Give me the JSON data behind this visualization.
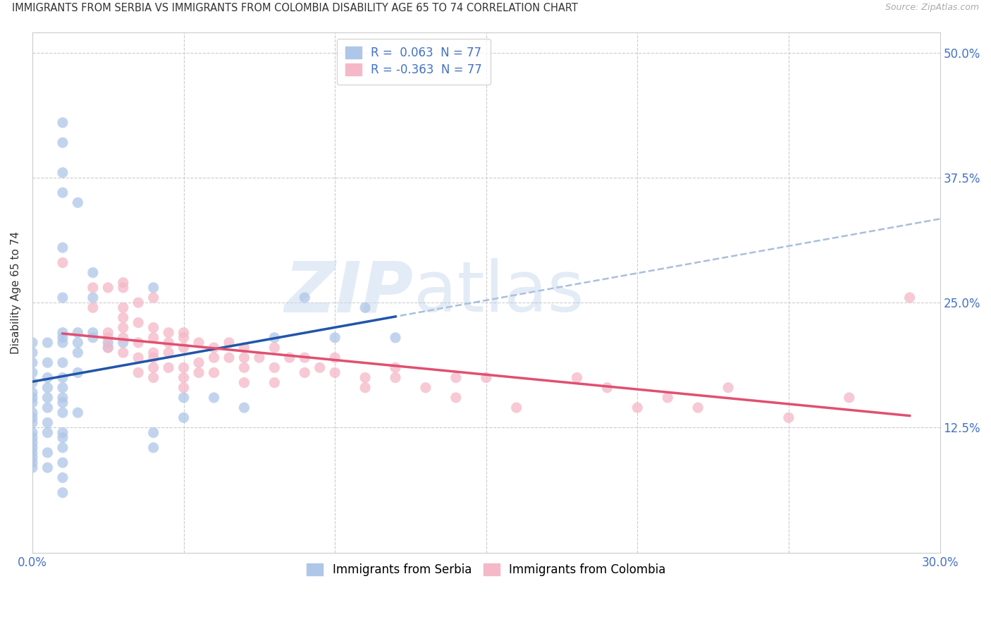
{
  "title": "IMMIGRANTS FROM SERBIA VS IMMIGRANTS FROM COLOMBIA DISABILITY AGE 65 TO 74 CORRELATION CHART",
  "source": "Source: ZipAtlas.com",
  "ylabel": "Disability Age 65 to 74",
  "xlim": [
    0.0,
    0.3
  ],
  "ylim": [
    0.0,
    0.52
  ],
  "xticks": [
    0.0,
    0.05,
    0.1,
    0.15,
    0.2,
    0.25,
    0.3
  ],
  "yticks": [
    0.125,
    0.25,
    0.375,
    0.5
  ],
  "ytick_labels": [
    "12.5%",
    "25.0%",
    "37.5%",
    "50.0%"
  ],
  "serbia_color": "#aec6e8",
  "colombia_color": "#f4b8c8",
  "serbia_line_color": "#2255aa",
  "colombia_line_color": "#e05070",
  "serbia_dash_color": "#a0b8d8",
  "serbia_scatter": [
    [
      0.0,
      0.21
    ],
    [
      0.0,
      0.2
    ],
    [
      0.0,
      0.19
    ],
    [
      0.0,
      0.18
    ],
    [
      0.0,
      0.17
    ],
    [
      0.0,
      0.16
    ],
    [
      0.0,
      0.155
    ],
    [
      0.0,
      0.15
    ],
    [
      0.0,
      0.14
    ],
    [
      0.0,
      0.135
    ],
    [
      0.0,
      0.13
    ],
    [
      0.0,
      0.12
    ],
    [
      0.0,
      0.115
    ],
    [
      0.0,
      0.11
    ],
    [
      0.0,
      0.105
    ],
    [
      0.0,
      0.1
    ],
    [
      0.0,
      0.095
    ],
    [
      0.0,
      0.09
    ],
    [
      0.0,
      0.085
    ],
    [
      0.005,
      0.21
    ],
    [
      0.005,
      0.19
    ],
    [
      0.005,
      0.175
    ],
    [
      0.005,
      0.165
    ],
    [
      0.005,
      0.155
    ],
    [
      0.005,
      0.145
    ],
    [
      0.005,
      0.13
    ],
    [
      0.005,
      0.12
    ],
    [
      0.005,
      0.1
    ],
    [
      0.005,
      0.085
    ],
    [
      0.01,
      0.43
    ],
    [
      0.01,
      0.41
    ],
    [
      0.01,
      0.38
    ],
    [
      0.01,
      0.36
    ],
    [
      0.01,
      0.305
    ],
    [
      0.01,
      0.255
    ],
    [
      0.01,
      0.22
    ],
    [
      0.01,
      0.215
    ],
    [
      0.01,
      0.21
    ],
    [
      0.01,
      0.19
    ],
    [
      0.01,
      0.175
    ],
    [
      0.01,
      0.165
    ],
    [
      0.01,
      0.155
    ],
    [
      0.01,
      0.15
    ],
    [
      0.01,
      0.14
    ],
    [
      0.01,
      0.12
    ],
    [
      0.01,
      0.115
    ],
    [
      0.01,
      0.105
    ],
    [
      0.01,
      0.09
    ],
    [
      0.01,
      0.075
    ],
    [
      0.01,
      0.06
    ],
    [
      0.015,
      0.35
    ],
    [
      0.015,
      0.22
    ],
    [
      0.015,
      0.21
    ],
    [
      0.015,
      0.2
    ],
    [
      0.015,
      0.18
    ],
    [
      0.015,
      0.14
    ],
    [
      0.02,
      0.28
    ],
    [
      0.02,
      0.255
    ],
    [
      0.02,
      0.22
    ],
    [
      0.02,
      0.215
    ],
    [
      0.025,
      0.21
    ],
    [
      0.025,
      0.205
    ],
    [
      0.03,
      0.21
    ],
    [
      0.04,
      0.265
    ],
    [
      0.04,
      0.12
    ],
    [
      0.04,
      0.105
    ],
    [
      0.05,
      0.155
    ],
    [
      0.05,
      0.135
    ],
    [
      0.06,
      0.155
    ],
    [
      0.07,
      0.145
    ],
    [
      0.08,
      0.215
    ],
    [
      0.09,
      0.255
    ],
    [
      0.1,
      0.215
    ],
    [
      0.11,
      0.245
    ],
    [
      0.12,
      0.215
    ]
  ],
  "colombia_scatter": [
    [
      0.01,
      0.29
    ],
    [
      0.02,
      0.265
    ],
    [
      0.02,
      0.245
    ],
    [
      0.025,
      0.265
    ],
    [
      0.025,
      0.22
    ],
    [
      0.025,
      0.215
    ],
    [
      0.025,
      0.205
    ],
    [
      0.03,
      0.27
    ],
    [
      0.03,
      0.265
    ],
    [
      0.03,
      0.245
    ],
    [
      0.03,
      0.235
    ],
    [
      0.03,
      0.225
    ],
    [
      0.03,
      0.215
    ],
    [
      0.03,
      0.2
    ],
    [
      0.035,
      0.25
    ],
    [
      0.035,
      0.23
    ],
    [
      0.035,
      0.21
    ],
    [
      0.035,
      0.195
    ],
    [
      0.035,
      0.18
    ],
    [
      0.04,
      0.255
    ],
    [
      0.04,
      0.225
    ],
    [
      0.04,
      0.215
    ],
    [
      0.04,
      0.2
    ],
    [
      0.04,
      0.195
    ],
    [
      0.04,
      0.185
    ],
    [
      0.04,
      0.175
    ],
    [
      0.045,
      0.22
    ],
    [
      0.045,
      0.21
    ],
    [
      0.045,
      0.2
    ],
    [
      0.045,
      0.185
    ],
    [
      0.05,
      0.22
    ],
    [
      0.05,
      0.215
    ],
    [
      0.05,
      0.205
    ],
    [
      0.05,
      0.185
    ],
    [
      0.05,
      0.175
    ],
    [
      0.05,
      0.165
    ],
    [
      0.055,
      0.21
    ],
    [
      0.055,
      0.19
    ],
    [
      0.055,
      0.18
    ],
    [
      0.06,
      0.205
    ],
    [
      0.06,
      0.195
    ],
    [
      0.06,
      0.18
    ],
    [
      0.065,
      0.21
    ],
    [
      0.065,
      0.195
    ],
    [
      0.07,
      0.205
    ],
    [
      0.07,
      0.195
    ],
    [
      0.07,
      0.185
    ],
    [
      0.07,
      0.17
    ],
    [
      0.075,
      0.195
    ],
    [
      0.08,
      0.205
    ],
    [
      0.08,
      0.185
    ],
    [
      0.08,
      0.17
    ],
    [
      0.085,
      0.195
    ],
    [
      0.09,
      0.195
    ],
    [
      0.09,
      0.18
    ],
    [
      0.095,
      0.185
    ],
    [
      0.1,
      0.195
    ],
    [
      0.1,
      0.18
    ],
    [
      0.11,
      0.175
    ],
    [
      0.11,
      0.165
    ],
    [
      0.12,
      0.185
    ],
    [
      0.12,
      0.175
    ],
    [
      0.13,
      0.165
    ],
    [
      0.14,
      0.175
    ],
    [
      0.14,
      0.155
    ],
    [
      0.15,
      0.175
    ],
    [
      0.16,
      0.145
    ],
    [
      0.18,
      0.175
    ],
    [
      0.19,
      0.165
    ],
    [
      0.2,
      0.145
    ],
    [
      0.21,
      0.155
    ],
    [
      0.22,
      0.145
    ],
    [
      0.23,
      0.165
    ],
    [
      0.25,
      0.135
    ],
    [
      0.27,
      0.155
    ],
    [
      0.29,
      0.255
    ]
  ]
}
